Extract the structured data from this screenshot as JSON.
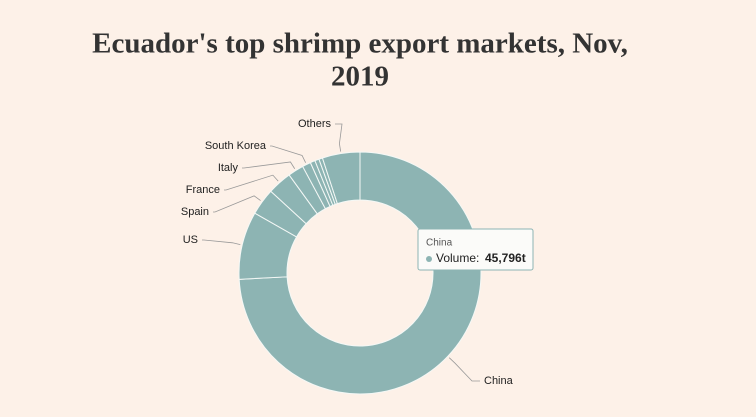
{
  "chart_data": {
    "type": "donut",
    "title_lines": [
      "Ecuador's top shrimp export markets, Nov,",
      "2019"
    ],
    "categories": [
      "China",
      "US",
      "Spain",
      "France",
      "Italy",
      "South Korea",
      null,
      null,
      null,
      "Others"
    ],
    "series": [
      {
        "name": "Volume",
        "color": "#8db4b3",
        "values": [
          45796,
          5600,
          2200,
          2000,
          1300,
          700,
          400,
          350,
          300,
          3100
        ],
        "value_labels": [
          "45,796t",
          null,
          null,
          null,
          null,
          null,
          null,
          null,
          null,
          null
        ]
      }
    ],
    "tooltip_label": "Volume:"
  }
}
